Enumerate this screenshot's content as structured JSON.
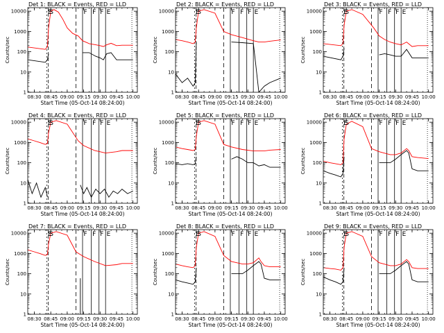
{
  "figure": {
    "panels": [
      {
        "title": "Det 1: BLACK = Events, RED = LLD"
      },
      {
        "title": "Det 2: BLACK = Events, RED = LLD"
      },
      {
        "title": "Det 3: BLACK = Events, RED = LLD"
      },
      {
        "title": "Det 4: BLACK = Events, RED = LLD"
      },
      {
        "title": "Det 5: BLACK = Events, RED = LLD"
      },
      {
        "title": "Det 6: BLACK = Events, RED = LLD"
      },
      {
        "title": "Det 7: BLACK = Events, RED = LLD"
      },
      {
        "title": "Det 8: BLACK = Events, RED = LLD"
      },
      {
        "title": "Det 9: BLACK = Events, RED = LLD"
      }
    ],
    "ylabel": "Counts/sec",
    "xlabel": "Start Time (05-Oct-14 08:24:00)",
    "xticks": [
      "08:30",
      "08:45",
      "09:00",
      "09:15",
      "09:30",
      "09:45",
      "10:00"
    ],
    "yticks": [
      "1",
      "10",
      "100",
      "1000",
      "10000"
    ],
    "markers": [
      "E",
      "S",
      "F",
      "F",
      "F",
      "E"
    ],
    "colors": {
      "events": "#000000",
      "lld": "#ff0000"
    }
  },
  "chart_data": [
    {
      "type": "line",
      "title": "Det 1: BLACK = Events, RED = LLD",
      "xlabel": "Start Time (05-Oct-14 08:24:00)",
      "ylabel": "Counts/sec",
      "yscale": "log",
      "ylim": [
        1,
        15000
      ],
      "xlim": [
        "08:24",
        "10:04"
      ],
      "series": [
        {
          "name": "LLD",
          "color": "#ff0000",
          "x": [
            "08:24",
            "08:40",
            "08:42",
            "08:43",
            "08:45",
            "08:48",
            "08:52",
            "08:56",
            "09:00",
            "09:05",
            "09:10",
            "09:14",
            "09:20",
            "09:26",
            "09:30",
            "09:33",
            "09:36",
            "09:40",
            "09:45",
            "09:50",
            "10:00"
          ],
          "y": [
            170,
            130,
            180,
            1500,
            10000,
            12000,
            9000,
            4000,
            1500,
            800,
            600,
            350,
            250,
            220,
            200,
            180,
            220,
            260,
            200,
            210,
            210
          ]
        },
        {
          "name": "Events",
          "color": "#000000",
          "x": [
            "08:24",
            "08:40",
            "08:42",
            "08:43",
            "09:10",
            "09:14",
            "09:20",
            "09:26",
            "09:30",
            "09:33",
            "09:36",
            "09:40",
            "09:45",
            "09:50",
            "10:00"
          ],
          "y": [
            40,
            30,
            40,
            80,
            null,
            90,
            90,
            60,
            50,
            40,
            80,
            90,
            40,
            40,
            40
          ]
        }
      ]
    },
    {
      "type": "line",
      "title": "Det 2: BLACK = Events, RED = LLD",
      "xlabel": "Start Time (05-Oct-14 08:24:00)",
      "ylabel": "Counts/sec",
      "yscale": "log",
      "ylim": [
        1,
        15000
      ],
      "xlim": [
        "08:24",
        "10:04"
      ],
      "series": [
        {
          "name": "LLD",
          "color": "#ff0000",
          "x": [
            "08:24",
            "08:30",
            "08:35",
            "08:40",
            "08:42",
            "08:43",
            "08:45",
            "08:50",
            "09:00",
            "09:08",
            "09:15",
            "09:25",
            "09:35",
            "09:40",
            "09:45",
            "09:50",
            "10:00"
          ],
          "y": [
            400,
            350,
            300,
            250,
            300,
            1500,
            10000,
            12000,
            8000,
            1000,
            700,
            500,
            350,
            300,
            300,
            330,
            380
          ]
        },
        {
          "name": "Events",
          "color": "#000000",
          "x": [
            "08:24",
            "08:30",
            "08:35",
            "08:40",
            "08:42",
            "08:43",
            "09:08",
            "09:15",
            "09:25",
            "09:35",
            "09:37",
            "09:40",
            "09:45",
            "09:50",
            "10:00"
          ],
          "y": [
            8,
            3,
            5,
            2,
            3,
            300,
            null,
            300,
            280,
            250,
            30,
            1,
            2,
            3,
            5
          ]
        }
      ]
    },
    {
      "type": "line",
      "title": "Det 3: BLACK = Events, RED = LLD",
      "xlabel": "Start Time (05-Oct-14 08:24:00)",
      "ylabel": "Counts/sec",
      "yscale": "log",
      "ylim": [
        1,
        15000
      ],
      "xlim": [
        "08:24",
        "10:04"
      ],
      "series": [
        {
          "name": "LLD",
          "color": "#ff0000",
          "x": [
            "08:24",
            "08:40",
            "08:42",
            "08:43",
            "08:45",
            "08:50",
            "09:00",
            "09:10",
            "09:15",
            "09:20",
            "09:25",
            "09:30",
            "09:35",
            "09:40",
            "09:45",
            "09:50",
            "10:00"
          ],
          "y": [
            250,
            200,
            250,
            2000,
            10000,
            12000,
            7000,
            1500,
            600,
            400,
            300,
            250,
            220,
            300,
            180,
            200,
            200
          ]
        },
        {
          "name": "Events",
          "color": "#000000",
          "x": [
            "08:24",
            "08:40",
            "08:42",
            "08:43",
            "09:10",
            "09:15",
            "09:20",
            "09:25",
            "09:30",
            "09:35",
            "09:40",
            "09:45",
            "09:50",
            "10:00"
          ],
          "y": [
            60,
            40,
            60,
            150,
            null,
            70,
            80,
            70,
            60,
            60,
            130,
            50,
            50,
            50
          ]
        }
      ]
    },
    {
      "type": "line",
      "title": "Det 4: BLACK = Events, RED = LLD",
      "xlabel": "Start Time (05-Oct-14 08:24:00)",
      "ylabel": "Counts/sec",
      "yscale": "log",
      "ylim": [
        1,
        15000
      ],
      "xlim": [
        "08:24",
        "10:04"
      ],
      "series": [
        {
          "name": "LLD",
          "color": "#ff0000",
          "x": [
            "08:24",
            "08:30",
            "08:35",
            "08:40",
            "08:42",
            "08:43",
            "08:45",
            "08:50",
            "09:00",
            "09:10",
            "09:15",
            "09:25",
            "09:35",
            "09:45",
            "09:50",
            "10:00"
          ],
          "y": [
            1500,
            1200,
            1000,
            800,
            900,
            3000,
            10000,
            12000,
            8000,
            1200,
            700,
            400,
            300,
            350,
            400,
            400
          ]
        },
        {
          "name": "Events",
          "color": "#000000",
          "x": [
            "08:24",
            "08:28",
            "08:32",
            "08:36",
            "08:40",
            "08:42",
            "09:09",
            "09:12",
            "09:15",
            "09:18",
            "09:22",
            "09:26",
            "09:30",
            "09:34",
            "09:38",
            "09:42",
            "09:46",
            "09:50",
            "09:55",
            "10:00"
          ],
          "y": [
            15,
            3,
            10,
            2,
            6,
            2,
            null,
            8,
            3,
            6,
            2,
            5,
            3,
            5,
            2,
            4,
            3,
            5,
            3,
            4
          ]
        }
      ]
    },
    {
      "type": "line",
      "title": "Det 5: BLACK = Events, RED = LLD",
      "xlabel": "Start Time (05-Oct-14 08:24:00)",
      "ylabel": "Counts/sec",
      "yscale": "log",
      "ylim": [
        1,
        15000
      ],
      "xlim": [
        "08:24",
        "10:04"
      ],
      "series": [
        {
          "name": "LLD",
          "color": "#ff0000",
          "x": [
            "08:24",
            "08:30",
            "08:35",
            "08:40",
            "08:42",
            "08:43",
            "08:45",
            "08:50",
            "09:00",
            "09:08",
            "09:15",
            "09:25",
            "09:35",
            "09:45",
            "09:50",
            "10:00"
          ],
          "y": [
            600,
            500,
            450,
            400,
            450,
            2000,
            10000,
            12000,
            8000,
            800,
            600,
            450,
            380,
            380,
            420,
            450
          ]
        },
        {
          "name": "Events",
          "color": "#000000",
          "x": [
            "08:24",
            "08:30",
            "08:35",
            "08:40",
            "08:42",
            "08:43",
            "09:08",
            "09:15",
            "09:20",
            "09:25",
            "09:30",
            "09:35",
            "09:40",
            "09:45",
            "09:50",
            "10:00"
          ],
          "y": [
            90,
            80,
            90,
            80,
            90,
            200,
            null,
            150,
            200,
            150,
            100,
            100,
            70,
            80,
            60,
            60
          ]
        }
      ]
    },
    {
      "type": "line",
      "title": "Det 6: BLACK = Events, RED = LLD",
      "xlabel": "Start Time (05-Oct-14 08:24:00)",
      "ylabel": "Counts/sec",
      "yscale": "log",
      "ylim": [
        1,
        15000
      ],
      "xlim": [
        "08:24",
        "10:04"
      ],
      "series": [
        {
          "name": "LLD",
          "color": "#ff0000",
          "x": [
            "08:24",
            "08:30",
            "08:35",
            "08:40",
            "08:42",
            "08:43",
            "08:45",
            "08:50",
            "09:00",
            "09:08",
            "09:15",
            "09:25",
            "09:30",
            "09:35",
            "09:40",
            "09:42",
            "09:45",
            "09:50",
            "10:00"
          ],
          "y": [
            120,
            100,
            90,
            80,
            100,
            1500,
            8000,
            11000,
            6000,
            500,
            350,
            250,
            250,
            300,
            500,
            400,
            200,
            180,
            160
          ]
        },
        {
          "name": "Events",
          "color": "#000000",
          "x": [
            "08:24",
            "08:30",
            "08:35",
            "08:40",
            "08:42",
            "08:43",
            "09:08",
            "09:15",
            "09:25",
            "09:30",
            "09:35",
            "09:40",
            "09:42",
            "09:45",
            "09:50",
            "10:00"
          ],
          "y": [
            40,
            30,
            25,
            20,
            30,
            200,
            null,
            100,
            100,
            150,
            250,
            400,
            300,
            50,
            40,
            40
          ]
        }
      ]
    },
    {
      "type": "line",
      "title": "Det 7: BLACK = Events, RED = LLD",
      "xlabel": "Start Time (05-Oct-14 08:24:00)",
      "ylabel": "Counts/sec",
      "yscale": "log",
      "ylim": [
        1,
        15000
      ],
      "xlim": [
        "08:24",
        "10:04"
      ],
      "series": [
        {
          "name": "LLD",
          "color": "#ff0000",
          "x": [
            "08:24",
            "08:30",
            "08:35",
            "08:40",
            "08:42",
            "08:43",
            "08:45",
            "08:50",
            "09:00",
            "09:08",
            "09:15",
            "09:25",
            "09:35",
            "09:45",
            "09:50",
            "10:00"
          ],
          "y": [
            1500,
            1200,
            1000,
            800,
            900,
            3000,
            10000,
            12000,
            8000,
            1200,
            700,
            400,
            250,
            280,
            320,
            320
          ]
        },
        {
          "name": "Events",
          "color": "#000000",
          "x": [
            "09:12",
            "09:12"
          ],
          "y": [
            1,
            60
          ]
        }
      ]
    },
    {
      "type": "line",
      "title": "Det 8: BLACK = Events, RED = LLD",
      "xlabel": "Start Time (05-Oct-14 08:24:00)",
      "ylabel": "Counts/sec",
      "yscale": "log",
      "ylim": [
        1,
        15000
      ],
      "xlim": [
        "08:24",
        "10:04"
      ],
      "series": [
        {
          "name": "LLD",
          "color": "#ff0000",
          "x": [
            "08:24",
            "08:30",
            "08:35",
            "08:40",
            "08:42",
            "08:43",
            "08:45",
            "08:50",
            "09:00",
            "09:08",
            "09:15",
            "09:25",
            "09:30",
            "09:35",
            "09:40",
            "09:42",
            "09:45",
            "09:50",
            "10:00"
          ],
          "y": [
            300,
            250,
            220,
            200,
            250,
            2000,
            10000,
            12000,
            7000,
            800,
            400,
            300,
            300,
            350,
            600,
            400,
            250,
            220,
            220
          ]
        },
        {
          "name": "Events",
          "color": "#000000",
          "x": [
            "08:24",
            "08:30",
            "08:35",
            "08:40",
            "08:42",
            "08:43",
            "09:08",
            "09:15",
            "09:25",
            "09:30",
            "09:35",
            "09:40",
            "09:42",
            "09:45",
            "09:50",
            "10:00"
          ],
          "y": [
            50,
            40,
            35,
            30,
            40,
            200,
            null,
            100,
            100,
            150,
            250,
            400,
            300,
            60,
            50,
            50
          ]
        }
      ]
    },
    {
      "type": "line",
      "title": "Det 9: BLACK = Events, RED = LLD",
      "xlabel": "Start Time (05-Oct-14 08:24:00)",
      "ylabel": "Counts/sec",
      "yscale": "log",
      "ylim": [
        1,
        15000
      ],
      "xlim": [
        "08:24",
        "10:04"
      ],
      "series": [
        {
          "name": "LLD",
          "color": "#ff0000",
          "x": [
            "08:24",
            "08:30",
            "08:35",
            "08:40",
            "08:42",
            "08:43",
            "08:45",
            "08:50",
            "09:00",
            "09:08",
            "09:15",
            "09:25",
            "09:30",
            "09:35",
            "09:40",
            "09:42",
            "09:45",
            "09:50",
            "10:00"
          ],
          "y": [
            200,
            180,
            170,
            150,
            200,
            2000,
            10000,
            12000,
            7000,
            700,
            350,
            250,
            250,
            300,
            500,
            400,
            200,
            180,
            180
          ]
        },
        {
          "name": "Events",
          "color": "#000000",
          "x": [
            "08:24",
            "08:30",
            "08:35",
            "08:40",
            "08:42",
            "08:43",
            "09:08",
            "09:15",
            "09:25",
            "09:30",
            "09:35",
            "09:40",
            "09:42",
            "09:45",
            "09:50",
            "10:00"
          ],
          "y": [
            70,
            50,
            40,
            30,
            40,
            200,
            null,
            100,
            100,
            150,
            250,
            400,
            300,
            50,
            40,
            40
          ]
        }
      ]
    }
  ]
}
